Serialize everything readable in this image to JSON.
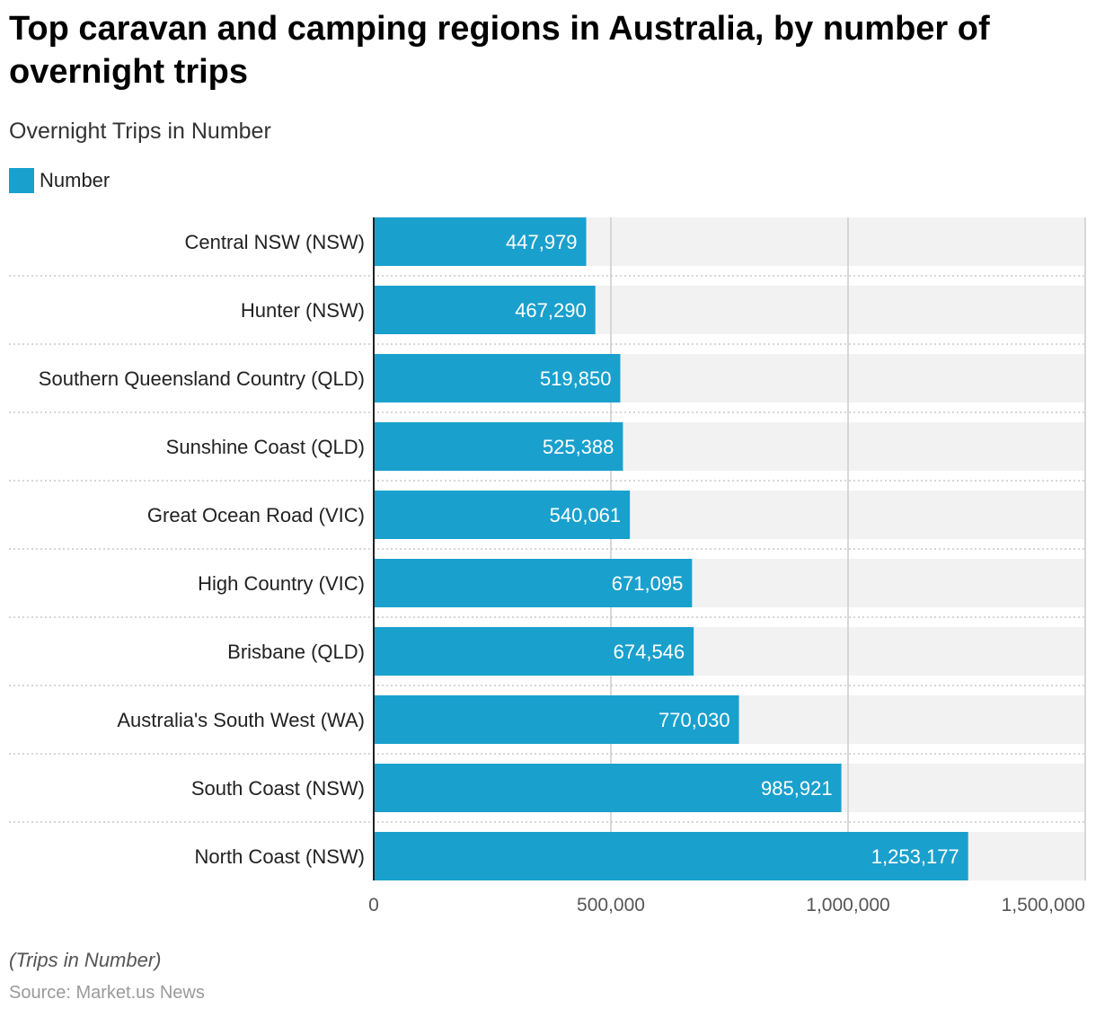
{
  "header": {
    "title": "Top caravan and camping regions in Australia, by number of overnight trips",
    "subtitle": "Overnight Trips in Number"
  },
  "legend": {
    "label": "Number"
  },
  "colors": {
    "bar": "#1aa0cd",
    "track": "#f2f2f2",
    "grid": "#cccccc",
    "separator": "#c8c8c8",
    "axis": "#222222",
    "bar_label": "#ffffff",
    "category_label": "#222222",
    "tick_label": "#555555"
  },
  "chart_data": {
    "type": "bar",
    "orientation": "horizontal",
    "title": "Top caravan and camping regions in Australia, by number of overnight trips",
    "subtitle": "Overnight Trips in Number",
    "categories": [
      "Central NSW (NSW)",
      "Hunter (NSW)",
      "Southern Queensland Country (QLD)",
      "Sunshine Coast (QLD)",
      "Great Ocean Road (VIC)",
      "High Country (VIC)",
      "Brisbane (QLD)",
      "Australia's South West (WA)",
      "South Coast (NSW)",
      "North Coast (NSW)"
    ],
    "series": [
      {
        "name": "Number",
        "values": [
          447979,
          467290,
          519850,
          525388,
          540061,
          671095,
          674546,
          770030,
          985921,
          1253177
        ],
        "labels": [
          "447,979",
          "467,290",
          "519,850",
          "525,388",
          "540,061",
          "671,095",
          "674,546",
          "770,030",
          "985,921",
          "1,253,177"
        ]
      }
    ],
    "xlim": [
      0,
      1500000
    ],
    "xticks": [
      0,
      500000,
      1000000,
      1500000
    ],
    "xtick_labels": [
      "0",
      "500,000",
      "1,000,000",
      "1,500,000"
    ],
    "xlabel": "",
    "ylabel": "",
    "grid": true,
    "legend_position": "top-left"
  },
  "footer": {
    "note": "(Trips in Number)",
    "source": "Source: Market.us News"
  }
}
